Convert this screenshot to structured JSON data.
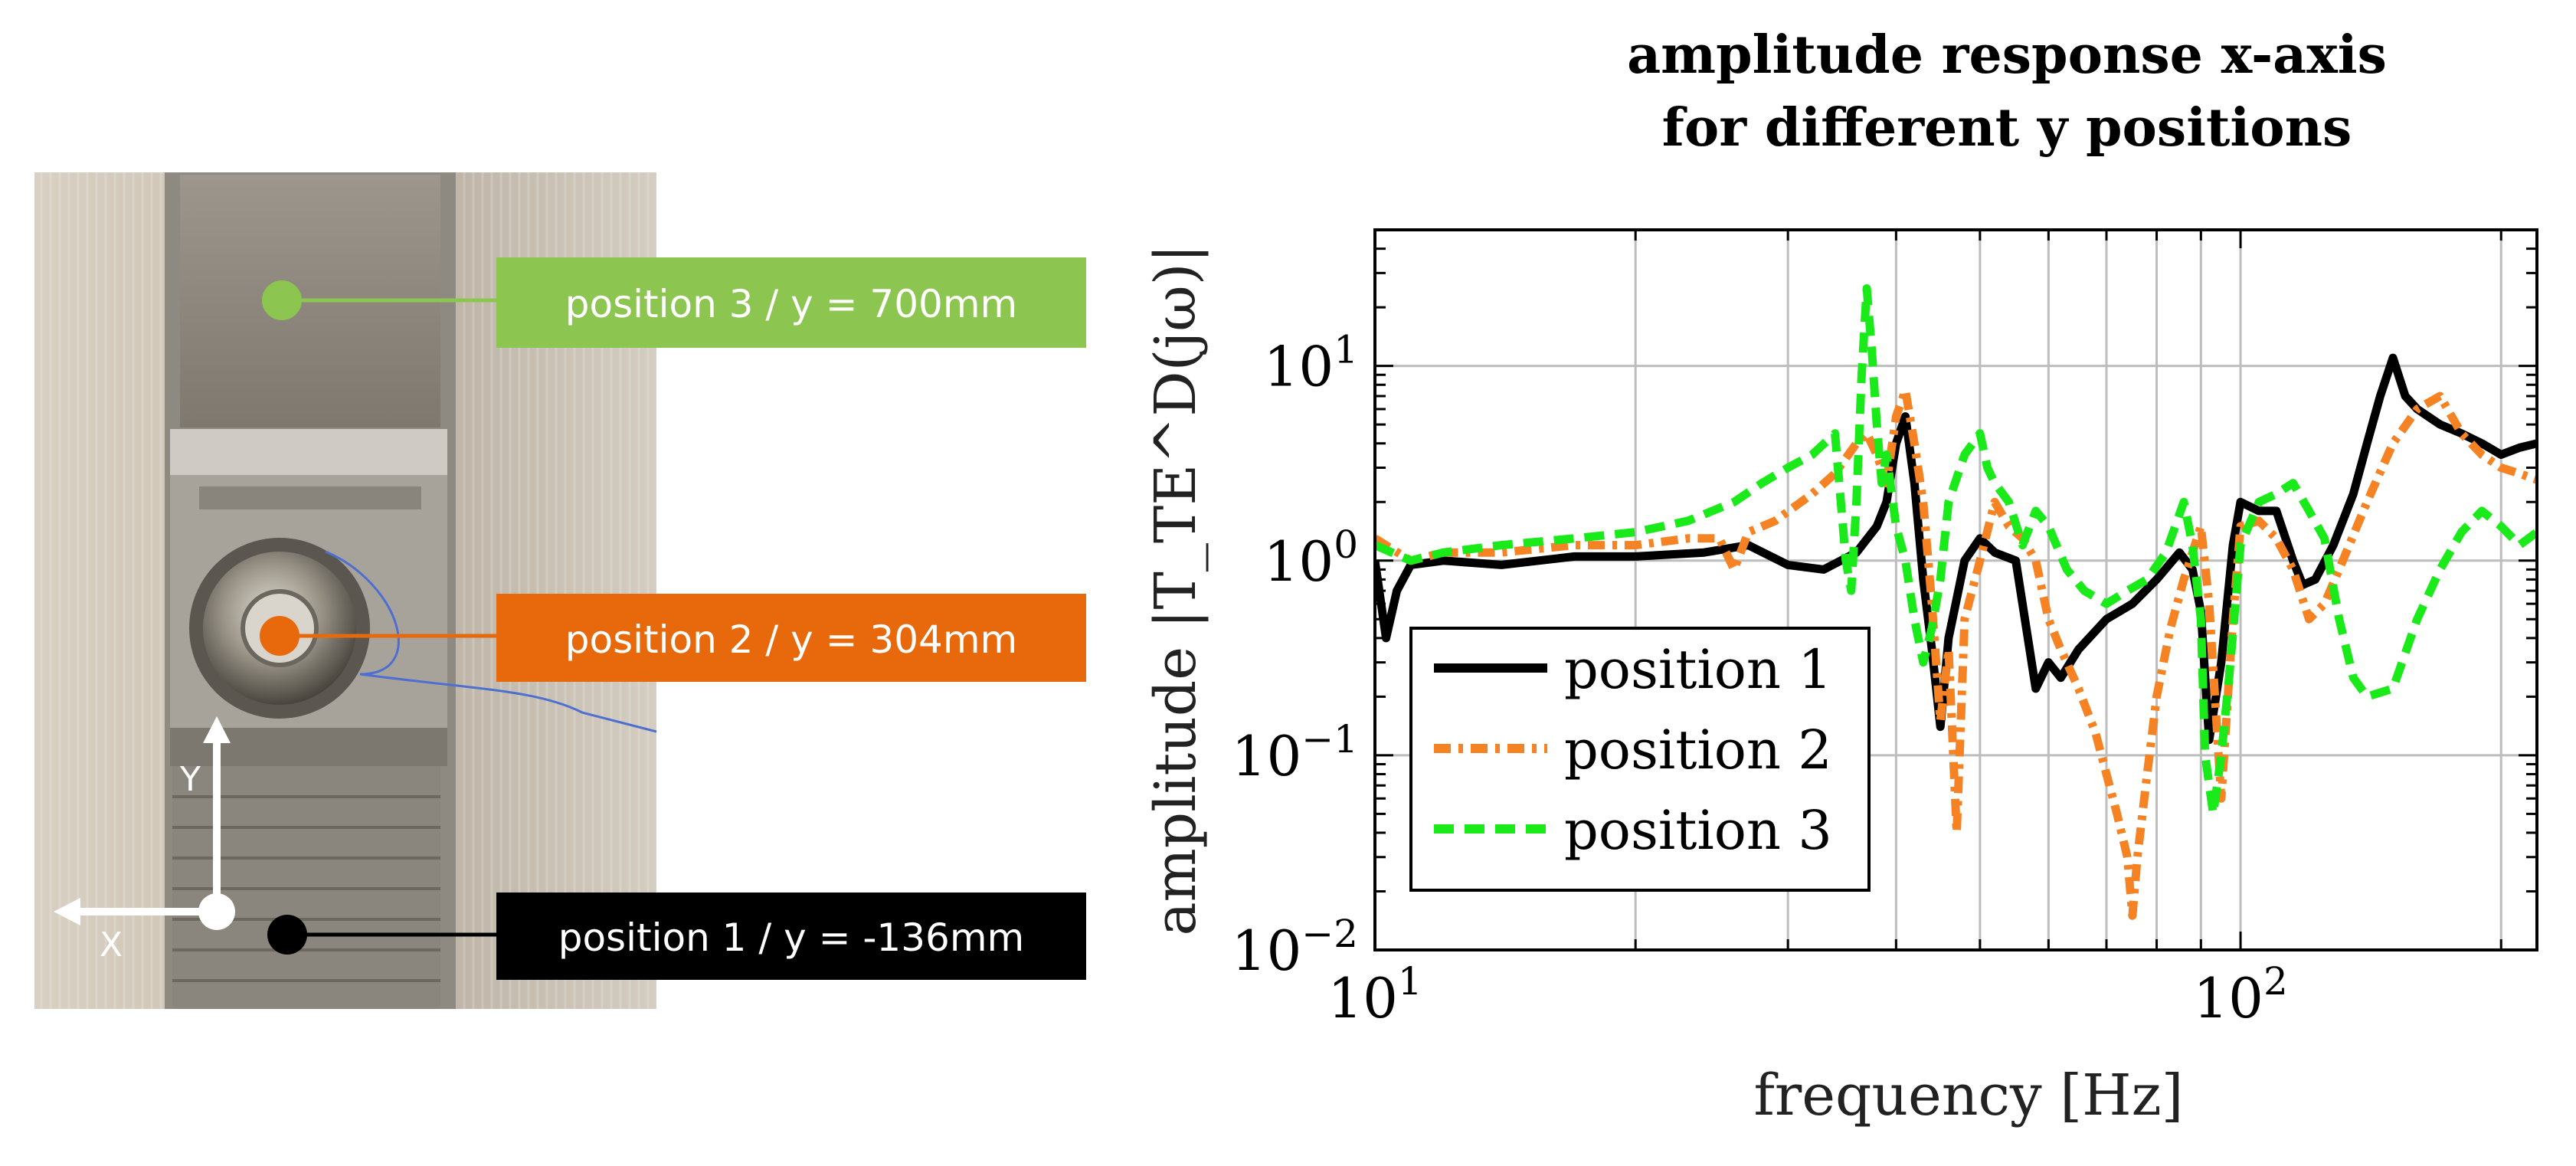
{
  "photo": {
    "labels": [
      {
        "text": "position 3 / y = 700mm",
        "color": "#8cc54f"
      },
      {
        "text": "position 2 / y = 304mm",
        "color": "#e8690c"
      },
      {
        "text": "position 1 / y = -136mm",
        "color": "#000000"
      }
    ],
    "axis_x": "X",
    "axis_y": "Y"
  },
  "chart_data": {
    "type": "line",
    "title_line1": "amplitude response x-axis",
    "title_line2": "for different y positions",
    "xlabel": "frequency [Hz]",
    "ylabel": "amplitude |T_TE^D(jω)|",
    "xscale": "log",
    "yscale": "log",
    "xlim": [
      10,
      220
    ],
    "ylim": [
      0.01,
      50
    ],
    "xticks": [
      {
        "value": 10,
        "base": "10",
        "exp": "1"
      },
      {
        "value": 100,
        "base": "10",
        "exp": "2"
      }
    ],
    "yticks": [
      {
        "value": 0.01,
        "base": "10",
        "exp": "−2"
      },
      {
        "value": 0.1,
        "base": "10",
        "exp": "−1"
      },
      {
        "value": 1,
        "base": "10",
        "exp": "0"
      },
      {
        "value": 10,
        "base": "10",
        "exp": "1"
      }
    ],
    "legend_position": "lower-left",
    "series": [
      {
        "name": "position 1",
        "color": "#000000",
        "dash": "solid",
        "x": [
          10,
          10.3,
          10.6,
          11,
          12,
          14,
          17,
          20,
          24,
          27,
          30,
          33,
          36,
          38,
          39,
          40,
          41,
          42,
          43,
          44,
          45,
          46,
          48,
          50,
          52,
          55,
          58,
          60,
          62,
          65,
          70,
          75,
          80,
          85,
          88,
          90,
          92,
          95,
          98,
          100,
          105,
          110,
          115,
          118,
          122,
          128,
          135,
          140,
          145,
          150,
          155,
          160,
          170,
          180,
          190,
          200,
          210,
          220
        ],
        "y": [
          1.0,
          0.4,
          0.7,
          0.95,
          1.0,
          0.95,
          1.05,
          1.05,
          1.1,
          1.2,
          0.95,
          0.9,
          1.1,
          1.5,
          2.0,
          4.0,
          5.5,
          2.5,
          0.8,
          0.35,
          0.14,
          0.4,
          1.0,
          1.3,
          1.1,
          1.0,
          0.22,
          0.3,
          0.25,
          0.35,
          0.5,
          0.6,
          0.8,
          1.1,
          0.9,
          0.55,
          0.12,
          0.3,
          1.2,
          2.0,
          1.8,
          1.8,
          1.0,
          0.75,
          0.8,
          1.2,
          2.2,
          4.0,
          7.0,
          11.0,
          7.0,
          6.0,
          5.0,
          4.5,
          4.0,
          3.5,
          3.8,
          4.0
        ]
      },
      {
        "name": "position 2",
        "color": "#f58223",
        "dash": "dashdot",
        "x": [
          10,
          11,
          12,
          14,
          17,
          20,
          23,
          25,
          26,
          27,
          29,
          32,
          34,
          36,
          37,
          38,
          39,
          40,
          41,
          42,
          43,
          44,
          45,
          46,
          47,
          48,
          50,
          52,
          54,
          56,
          58,
          60,
          62,
          65,
          68,
          70,
          72,
          74,
          75,
          76,
          78,
          80,
          83,
          86,
          90,
          92,
          95,
          98,
          100,
          105,
          110,
          115,
          120,
          125,
          130,
          140,
          150,
          160,
          170,
          180,
          190,
          200,
          210,
          220
        ],
        "y": [
          1.3,
          1.0,
          1.1,
          1.1,
          1.2,
          1.2,
          1.3,
          1.3,
          0.9,
          1.4,
          1.6,
          2.2,
          2.8,
          4.0,
          4.5,
          3.5,
          2.5,
          5.5,
          7.5,
          4.0,
          2.0,
          0.6,
          0.15,
          0.35,
          0.04,
          0.5,
          1.0,
          2.0,
          1.5,
          1.3,
          1.0,
          0.5,
          0.35,
          0.22,
          0.13,
          0.08,
          0.05,
          0.03,
          0.015,
          0.03,
          0.08,
          0.2,
          0.45,
          0.8,
          1.5,
          0.6,
          0.06,
          0.5,
          1.5,
          1.6,
          1.3,
          0.9,
          0.5,
          0.6,
          0.9,
          2.0,
          4.0,
          6.0,
          7.0,
          4.5,
          3.5,
          3.0,
          2.8,
          2.6
        ]
      },
      {
        "name": "position 3",
        "color": "#1aea1a",
        "dash": "dashed",
        "x": [
          10,
          11,
          12,
          14,
          17,
          20,
          23,
          26,
          28,
          30,
          32,
          34,
          35,
          35.5,
          36,
          36.5,
          37,
          37.5,
          38,
          38.5,
          39,
          40,
          41,
          42,
          43,
          44,
          45,
          46,
          48,
          50,
          51,
          52,
          54,
          56,
          58,
          60,
          63,
          66,
          70,
          74,
          78,
          82,
          86,
          88,
          90,
          91,
          93,
          95,
          97,
          100,
          105,
          110,
          115,
          120,
          125,
          130,
          135,
          140,
          150,
          160,
          170,
          180,
          190,
          200,
          210,
          220
        ],
        "y": [
          1.2,
          1.0,
          1.1,
          1.2,
          1.3,
          1.4,
          1.6,
          2.0,
          2.5,
          3.0,
          3.5,
          4.5,
          1.0,
          0.7,
          2.0,
          9.0,
          25.0,
          12.0,
          5.0,
          2.5,
          3.5,
          1.5,
          1.0,
          0.5,
          0.3,
          0.45,
          0.8,
          2.0,
          3.5,
          4.5,
          3.0,
          2.5,
          2.0,
          1.2,
          1.8,
          1.5,
          0.9,
          0.7,
          0.6,
          0.7,
          0.8,
          1.1,
          2.0,
          1.2,
          0.5,
          0.1,
          0.05,
          0.1,
          0.25,
          1.2,
          2.0,
          2.2,
          2.5,
          1.8,
          1.3,
          0.5,
          0.25,
          0.2,
          0.22,
          0.5,
          0.9,
          1.4,
          1.8,
          1.5,
          1.2,
          1.4
        ]
      }
    ]
  }
}
